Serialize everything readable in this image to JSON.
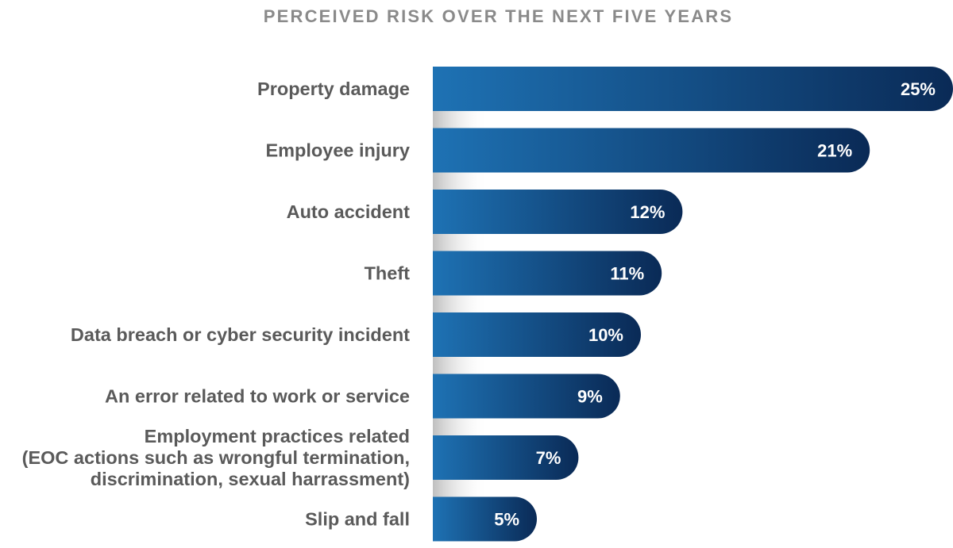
{
  "chart_data": {
    "type": "bar",
    "orientation": "horizontal",
    "title": "PERCEIVED RISK OVER THE NEXT FIVE YEARS",
    "categories": [
      [
        "Property damage"
      ],
      [
        "Employee injury"
      ],
      [
        "Auto accident"
      ],
      [
        "Theft"
      ],
      [
        "Data breach or cyber security incident"
      ],
      [
        "An error related to work or service"
      ],
      [
        "Employment practices related",
        "(EOC actions such as wrongful termination,",
        "discrimination, sexual harrassment)"
      ],
      [
        "Slip and fall"
      ]
    ],
    "values": [
      25,
      21,
      12,
      11,
      10,
      9,
      7,
      5
    ],
    "value_labels": [
      "25%",
      "21%",
      "12%",
      "11%",
      "10%",
      "9%",
      "7%",
      "5%"
    ],
    "unit": "%",
    "colors": {
      "bar_light": "#1e72b4",
      "bar_dark": "#0a2a56",
      "text": "#5a5a5a",
      "title": "#8a8a8a",
      "shadow": "#c8c8c8"
    }
  }
}
